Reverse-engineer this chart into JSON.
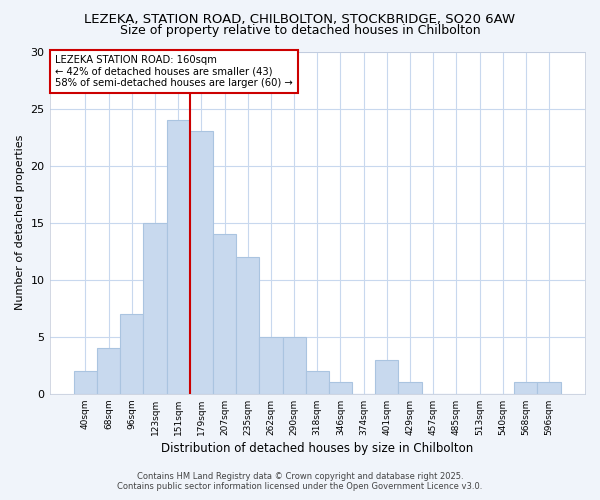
{
  "title1": "LEZEKA, STATION ROAD, CHILBOLTON, STOCKBRIDGE, SO20 6AW",
  "title2": "Size of property relative to detached houses in Chilbolton",
  "xlabel": "Distribution of detached houses by size in Chilbolton",
  "ylabel": "Number of detached properties",
  "bin_labels": [
    "40sqm",
    "68sqm",
    "96sqm",
    "123sqm",
    "151sqm",
    "179sqm",
    "207sqm",
    "235sqm",
    "262sqm",
    "290sqm",
    "318sqm",
    "346sqm",
    "374sqm",
    "401sqm",
    "429sqm",
    "457sqm",
    "485sqm",
    "513sqm",
    "540sqm",
    "568sqm",
    "596sqm"
  ],
  "bin_values": [
    2,
    4,
    7,
    15,
    24,
    23,
    14,
    12,
    5,
    5,
    2,
    1,
    0,
    3,
    1,
    0,
    0,
    0,
    0,
    1,
    1
  ],
  "bar_color": "#c8d9ee",
  "bar_edge_color": "#aac4e0",
  "vline_x": 4.5,
  "vline_color": "#cc0000",
  "annotation_title": "LEZEKA STATION ROAD: 160sqm",
  "annotation_line1": "← 42% of detached houses are smaller (43)",
  "annotation_line2": "58% of semi-detached houses are larger (60) →",
  "annotation_box_color": "#ffffff",
  "annotation_edge_color": "#cc0000",
  "ylim": [
    0,
    30
  ],
  "yticks": [
    0,
    5,
    10,
    15,
    20,
    25,
    30
  ],
  "footer1": "Contains HM Land Registry data © Crown copyright and database right 2025.",
  "footer2": "Contains public sector information licensed under the Open Government Licence v3.0.",
  "bg_color": "#f0f4fa",
  "plot_bg_color": "#ffffff",
  "title1_fontsize": 9.5,
  "title2_fontsize": 9
}
